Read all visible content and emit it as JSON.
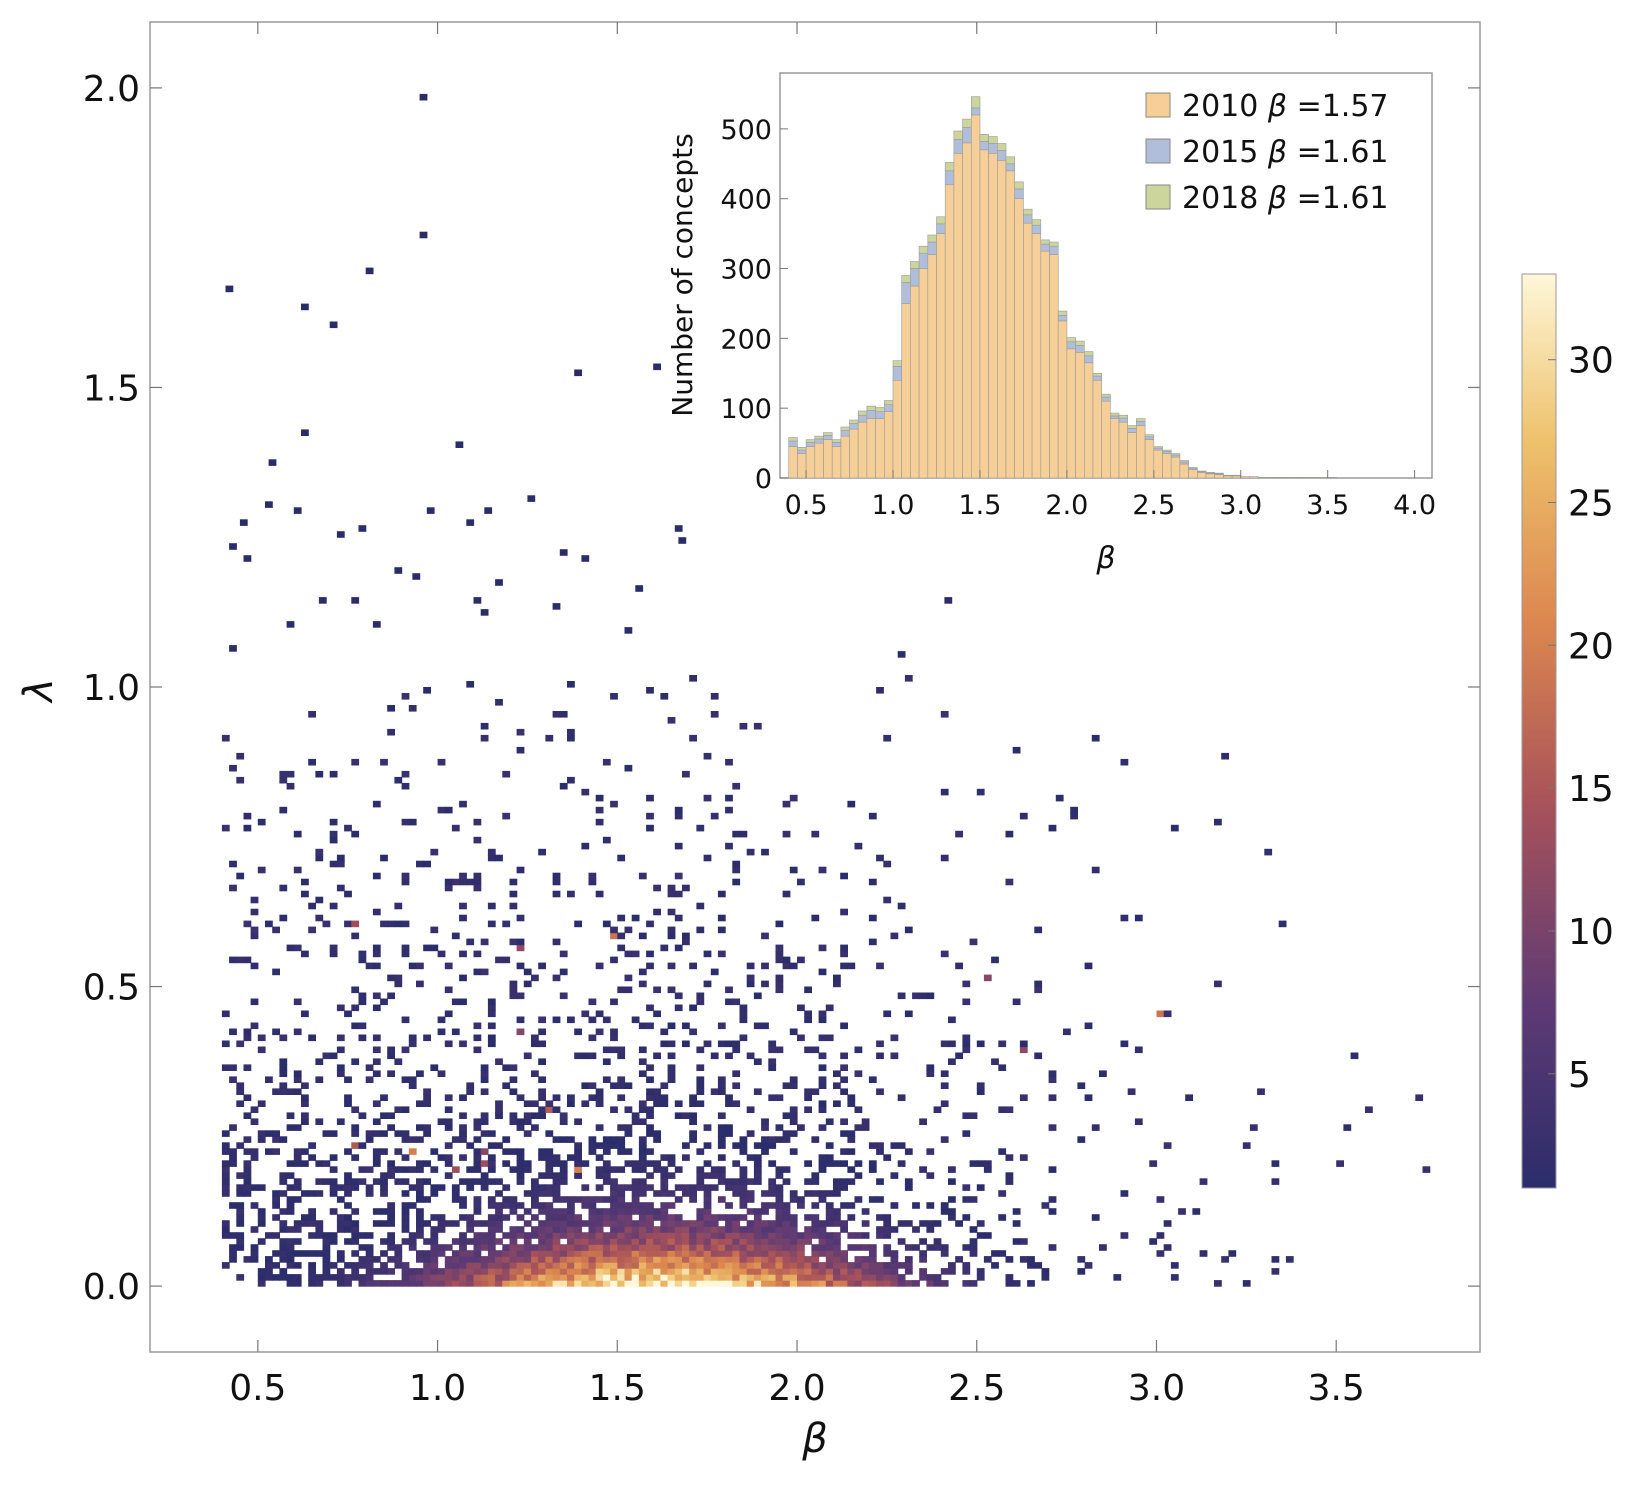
{
  "chart_data": [
    {
      "id": "main",
      "type": "heatmap",
      "title": "",
      "xlabel": "β",
      "ylabel": "λ",
      "xlim": [
        0.2,
        3.9
      ],
      "ylim": [
        -0.11,
        2.11
      ],
      "x_ticks": [
        0.5,
        1.0,
        1.5,
        2.0,
        2.5,
        3.0,
        3.5
      ],
      "x_tick_labels": [
        "0.5",
        "1.0",
        "1.5",
        "2.0",
        "2.5",
        "3.0",
        "3.5"
      ],
      "y_ticks": [
        0.0,
        0.5,
        1.0,
        1.5,
        2.0
      ],
      "y_tick_labels": [
        "0.0",
        "0.5",
        "1.0",
        "1.5",
        "2.0"
      ],
      "bin_width_x": 0.02,
      "bin_height_y": 0.01,
      "density_peak": {
        "beta": 1.62,
        "lambda": 0.0
      },
      "density_sigma": {
        "beta": 0.42,
        "lambda": 0.075
      },
      "density_max_count": 33,
      "outlier_points": [
        [
          0.95,
          1.98
        ],
        [
          0.95,
          1.75
        ],
        [
          0.8,
          1.69
        ],
        [
          0.41,
          1.66
        ],
        [
          0.62,
          1.63
        ],
        [
          0.7,
          1.6
        ],
        [
          1.6,
          1.53
        ],
        [
          1.38,
          1.52
        ],
        [
          0.62,
          1.42
        ],
        [
          1.05,
          1.4
        ],
        [
          0.53,
          1.37
        ],
        [
          1.25,
          1.31
        ],
        [
          0.52,
          1.3
        ],
        [
          0.6,
          1.29
        ],
        [
          0.97,
          1.29
        ],
        [
          1.13,
          1.29
        ],
        [
          1.08,
          1.27
        ],
        [
          0.45,
          1.27
        ],
        [
          1.66,
          1.26
        ],
        [
          0.78,
          1.26
        ],
        [
          0.72,
          1.25
        ],
        [
          0.42,
          1.23
        ],
        [
          1.67,
          1.24
        ],
        [
          1.34,
          1.22
        ],
        [
          0.46,
          1.21
        ],
        [
          1.4,
          1.21
        ],
        [
          0.88,
          1.19
        ],
        [
          0.93,
          1.18
        ],
        [
          1.16,
          1.17
        ],
        [
          1.55,
          1.16
        ],
        [
          2.41,
          1.14
        ],
        [
          1.1,
          1.14
        ],
        [
          0.67,
          1.14
        ],
        [
          0.76,
          1.14
        ],
        [
          1.32,
          1.13
        ],
        [
          1.12,
          1.12
        ],
        [
          0.58,
          1.1
        ],
        [
          0.82,
          1.1
        ],
        [
          1.52,
          1.09
        ],
        [
          0.42,
          1.06
        ],
        [
          2.28,
          1.05
        ]
      ],
      "colorbar": {
        "min": 1,
        "max": 33,
        "ticks": [
          5,
          10,
          15,
          20,
          25,
          30
        ],
        "tick_labels": [
          "5",
          "10",
          "15",
          "20",
          "25",
          "30"
        ],
        "colors": [
          "#2b2d6b",
          "#5e3a74",
          "#a8525a",
          "#dc874f",
          "#eec26d",
          "#fef7d9"
        ]
      }
    },
    {
      "id": "inset",
      "type": "bar",
      "title": "",
      "xlabel": "β",
      "ylabel": "Number of concepts",
      "xlim": [
        0.35,
        4.1
      ],
      "ylim": [
        0,
        580
      ],
      "x_ticks": [
        0.5,
        1.0,
        1.5,
        2.0,
        2.5,
        3.0,
        3.5,
        4.0
      ],
      "x_tick_labels": [
        "0.5",
        "1.0",
        "1.5",
        "2.0",
        "2.5",
        "3.0",
        "3.5",
        "4.0"
      ],
      "y_ticks": [
        0,
        100,
        200,
        300,
        400,
        500
      ],
      "y_tick_labels": [
        "0",
        "100",
        "200",
        "300",
        "400",
        "500"
      ],
      "bin_width": 0.05,
      "bin_edges_start": 0.4,
      "legend_position": "top-right",
      "series": [
        {
          "name": "2010",
          "legend_prefix": "2010 ",
          "legend_beta": "β",
          "legend_value": " =1.57",
          "color": "#f5cf97",
          "values": [
            45,
            35,
            45,
            50,
            55,
            45,
            60,
            70,
            80,
            85,
            85,
            95,
            140,
            250,
            275,
            300,
            320,
            350,
            420,
            465,
            480,
            520,
            470,
            465,
            455,
            440,
            400,
            365,
            350,
            325,
            320,
            225,
            185,
            180,
            165,
            140,
            110,
            85,
            80,
            65,
            75,
            55,
            40,
            35,
            30,
            20,
            12,
            8,
            6,
            5,
            3,
            3,
            2,
            2,
            1,
            1,
            1,
            1,
            1,
            1,
            1,
            1,
            1,
            0,
            0,
            0,
            0,
            0,
            0,
            0,
            0,
            0
          ]
        },
        {
          "name": "2015",
          "legend_prefix": "2015 ",
          "legend_beta": "β",
          "legend_value": " =1.61",
          "color": "#b1bed9",
          "values": [
            8,
            5,
            6,
            6,
            6,
            6,
            8,
            8,
            10,
            12,
            10,
            10,
            20,
            30,
            25,
            22,
            18,
            14,
            20,
            20,
            22,
            10,
            12,
            14,
            14,
            10,
            14,
            12,
            12,
            10,
            12,
            8,
            10,
            10,
            10,
            6,
            6,
            4,
            6,
            6,
            6,
            4,
            3,
            3,
            3,
            3,
            2,
            1,
            1,
            1,
            1,
            1,
            0,
            0,
            0,
            0,
            0,
            0,
            0,
            0,
            0,
            0,
            0,
            0,
            0,
            0,
            0,
            0,
            0,
            0,
            0,
            0
          ]
        },
        {
          "name": "2018",
          "legend_prefix": "2018 ",
          "legend_beta": "β",
          "legend_value": " =1.61",
          "color": "#ccd59c",
          "values": [
            5,
            4,
            4,
            4,
            4,
            4,
            5,
            5,
            6,
            6,
            6,
            6,
            8,
            10,
            10,
            10,
            10,
            10,
            12,
            12,
            12,
            16,
            10,
            10,
            10,
            10,
            10,
            8,
            8,
            6,
            6,
            6,
            6,
            6,
            6,
            4,
            4,
            4,
            4,
            4,
            4,
            3,
            2,
            2,
            2,
            2,
            1,
            1,
            1,
            1,
            0,
            0,
            0,
            0,
            0,
            0,
            0,
            0,
            0,
            0,
            0,
            0,
            0,
            0,
            0,
            0,
            0,
            0,
            0,
            0,
            0,
            0
          ]
        }
      ]
    }
  ]
}
